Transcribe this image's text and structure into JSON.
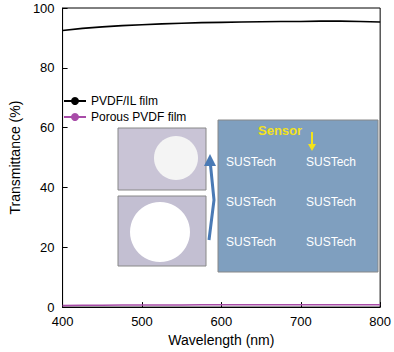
{
  "chart_data": {
    "type": "line",
    "xlabel": "Wavelength (nm)",
    "ylabel": "Transmittance (%)",
    "x": [
      400,
      425,
      450,
      475,
      500,
      525,
      550,
      575,
      600,
      625,
      650,
      675,
      700,
      725,
      750,
      775,
      800
    ],
    "series": [
      {
        "name": "PVDF/IL film",
        "color": "#000000",
        "values": [
          92.5,
          93.2,
          93.7,
          94.1,
          94.4,
          94.7,
          94.9,
          95.1,
          95.2,
          95.3,
          95.4,
          95.5,
          95.5,
          95.6,
          95.6,
          95.5,
          95.3
        ]
      },
      {
        "name": "Porous PVDF film",
        "color": "#a84ca8",
        "values": [
          0.5,
          0.6,
          0.6,
          0.7,
          0.7,
          0.7,
          0.7,
          0.8,
          0.8,
          0.8,
          0.8,
          0.8,
          0.8,
          0.8,
          0.8,
          0.8,
          0.8
        ]
      }
    ],
    "xlim": [
      400,
      800
    ],
    "xticks": [
      400,
      500,
      600,
      700,
      800
    ],
    "ylim": [
      0,
      100
    ],
    "yticks": [
      0,
      20,
      40,
      60,
      80,
      100
    ],
    "legend": "upper left",
    "grid": false,
    "annotations": [
      "Sensor",
      "SUSTech",
      "SUSTech",
      "SUSTech",
      "SUSTech",
      "SUSTech",
      "SUSTech"
    ]
  }
}
